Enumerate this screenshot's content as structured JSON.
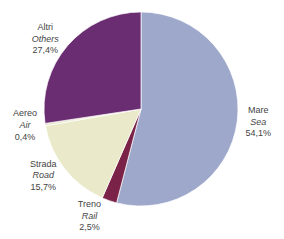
{
  "chart_data": {
    "type": "pie",
    "categories": [
      "Mare\nSea",
      "Treno\nRail",
      "Strada\nRoad",
      "Aereo\nAir",
      "Altri\nOthers"
    ],
    "values": [
      54.1,
      2.5,
      15.7,
      0.4,
      27.4
    ],
    "value_labels": [
      "54,1%",
      "2,5%",
      "15,7%",
      "0,4%",
      "27,4%"
    ],
    "colors": [
      "#9da8cb",
      "#7a2248",
      "#eaeacb",
      "#eaeacb",
      "#6b2d72"
    ]
  }
}
